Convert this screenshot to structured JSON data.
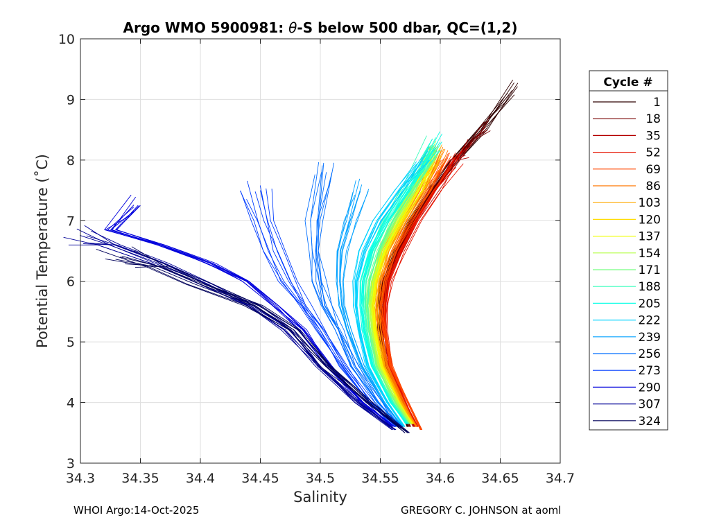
{
  "chart_data": {
    "type": "line",
    "title_pre": "Argo WMO 5900981: ",
    "title_theta": "θ",
    "title_post": "-S below 500 dbar,  QC=(1,2)",
    "xlabel": "Salinity",
    "ylabel": "Potential Temperature (˚C)",
    "xlim": [
      34.3,
      34.7
    ],
    "ylim": [
      3,
      10
    ],
    "xticks": [
      "34.3",
      "34.35",
      "34.4",
      "34.45",
      "34.5",
      "34.55",
      "34.6",
      "34.65",
      "34.7"
    ],
    "yticks": [
      "3",
      "4",
      "5",
      "6",
      "7",
      "8",
      "9",
      "10"
    ],
    "grid": true,
    "legend_title": "Cycle #",
    "legend_position": "outside-right",
    "legend_entries": [
      "1",
      "18",
      "35",
      "52",
      "69",
      "86",
      "103",
      "120",
      "137",
      "154",
      "171",
      "188",
      "205",
      "222",
      "239",
      "256",
      "273",
      "290",
      "307",
      "324"
    ],
    "legend_colors": [
      "#2e0000",
      "#780000",
      "#b40000",
      "#e61400",
      "#ff4600",
      "#ff7800",
      "#ffaa00",
      "#ffdc00",
      "#f0ff0a",
      "#b4ff46",
      "#78ff82",
      "#3cffbe",
      "#0affe6",
      "#00d2ff",
      "#00a0ff",
      "#006eff",
      "#003cff",
      "#0000dc",
      "#000096",
      "#00005a"
    ],
    "series": [
      {
        "name": "1",
        "color": "#2e0000",
        "x": [
          34.573,
          34.565,
          34.553,
          34.549,
          34.549,
          34.552,
          34.562,
          34.575,
          34.592,
          34.612,
          34.634,
          34.66
        ],
        "y": [
          3.6,
          4.0,
          4.6,
          5.2,
          5.6,
          6.0,
          6.5,
          7.0,
          7.5,
          8.0,
          8.5,
          9.15
        ]
      },
      {
        "name": "18",
        "color": "#780000",
        "x": [
          34.575,
          34.567,
          34.555,
          34.551,
          34.551,
          34.554,
          34.564,
          34.577,
          34.594,
          34.612,
          34.628,
          34.638
        ],
        "y": [
          3.6,
          4.0,
          4.6,
          5.2,
          5.6,
          6.0,
          6.5,
          7.0,
          7.5,
          8.0,
          8.35,
          8.55
        ]
      },
      {
        "name": "35",
        "color": "#b40000",
        "x": [
          34.578,
          34.569,
          34.557,
          34.553,
          34.553,
          34.556,
          34.566,
          34.579,
          34.595,
          34.612,
          34.622
        ],
        "y": [
          3.6,
          4.0,
          4.6,
          5.2,
          5.6,
          6.0,
          6.5,
          7.0,
          7.5,
          8.0,
          8.2
        ]
      },
      {
        "name": "52",
        "color": "#e61400",
        "x": [
          34.581,
          34.571,
          34.558,
          34.554,
          34.554,
          34.557,
          34.567,
          34.58,
          34.596,
          34.613
        ],
        "y": [
          3.6,
          4.0,
          4.6,
          5.2,
          5.6,
          6.0,
          6.5,
          7.0,
          7.5,
          8.05
        ]
      },
      {
        "name": "69",
        "color": "#ff4600",
        "x": [
          34.584,
          34.573,
          34.559,
          34.553,
          34.551,
          34.553,
          34.562,
          34.575,
          34.59,
          34.605
        ],
        "y": [
          3.55,
          4.0,
          4.6,
          5.2,
          5.6,
          6.0,
          6.5,
          7.0,
          7.5,
          8.0
        ]
      },
      {
        "name": "86",
        "color": "#ff7800",
        "x": [
          34.58,
          34.569,
          34.555,
          34.549,
          34.547,
          34.549,
          34.557,
          34.57,
          34.585,
          34.6
        ],
        "y": [
          3.6,
          4.0,
          4.6,
          5.2,
          5.6,
          6.0,
          6.5,
          7.0,
          7.5,
          8.05
        ]
      },
      {
        "name": "103",
        "color": "#ffaa00",
        "x": [
          34.578,
          34.567,
          34.553,
          34.547,
          34.545,
          34.547,
          34.555,
          34.568,
          34.583,
          34.598
        ],
        "y": [
          3.65,
          4.0,
          4.6,
          5.2,
          5.6,
          6.0,
          6.5,
          7.0,
          7.5,
          8.1
        ]
      },
      {
        "name": "120",
        "color": "#ffdc00",
        "x": [
          34.577,
          34.566,
          34.552,
          34.546,
          34.544,
          34.546,
          34.554,
          34.567,
          34.582,
          34.597
        ],
        "y": [
          3.65,
          4.0,
          4.6,
          5.2,
          5.6,
          6.0,
          6.5,
          7.0,
          7.5,
          8.1
        ]
      },
      {
        "name": "137",
        "color": "#f0ff0a",
        "x": [
          34.576,
          34.565,
          34.551,
          34.545,
          34.543,
          34.545,
          34.553,
          34.565,
          34.58,
          34.595
        ],
        "y": [
          3.65,
          4.0,
          4.6,
          5.2,
          5.6,
          6.0,
          6.5,
          7.0,
          7.5,
          8.1
        ]
      },
      {
        "name": "154",
        "color": "#b4ff46",
        "x": [
          34.575,
          34.564,
          34.549,
          34.543,
          34.541,
          34.543,
          34.551,
          34.563,
          34.578,
          34.594
        ],
        "y": [
          3.65,
          4.0,
          4.6,
          5.2,
          5.6,
          6.0,
          6.5,
          7.0,
          7.5,
          8.15
        ]
      },
      {
        "name": "171",
        "color": "#78ff82",
        "x": [
          34.574,
          34.562,
          34.547,
          34.541,
          34.539,
          34.541,
          34.549,
          34.561,
          34.576,
          34.595
        ],
        "y": [
          3.65,
          4.0,
          4.6,
          5.2,
          5.6,
          6.0,
          6.5,
          7.0,
          7.5,
          8.2
        ]
      },
      {
        "name": "188",
        "color": "#3cffbe",
        "x": [
          34.573,
          34.561,
          34.545,
          34.539,
          34.537,
          34.538,
          34.545,
          34.557,
          34.573,
          34.595
        ],
        "y": [
          3.65,
          4.0,
          4.6,
          5.2,
          5.6,
          6.0,
          6.5,
          7.0,
          7.5,
          8.25
        ]
      },
      {
        "name": "205",
        "color": "#0affe6",
        "x": [
          34.572,
          34.559,
          34.543,
          34.536,
          34.534,
          34.535,
          34.542,
          34.555,
          34.572,
          34.598
        ],
        "y": [
          3.65,
          4.0,
          4.6,
          5.2,
          5.6,
          6.0,
          6.5,
          7.0,
          7.5,
          8.3
        ]
      },
      {
        "name": "222",
        "color": "#00d2ff",
        "x": [
          34.57,
          34.556,
          34.539,
          34.532,
          34.529,
          34.529,
          34.535,
          34.547,
          34.565,
          34.585
        ],
        "y": [
          3.6,
          4.0,
          4.6,
          5.2,
          5.6,
          6.0,
          6.5,
          7.0,
          7.5,
          8.05
        ]
      },
      {
        "name": "239",
        "color": "#00a0ff",
        "x": [
          34.568,
          34.553,
          34.535,
          34.524,
          34.518,
          34.516,
          34.518,
          34.525,
          34.534
        ],
        "y": [
          3.6,
          4.0,
          4.6,
          5.2,
          5.6,
          6.0,
          6.5,
          7.0,
          7.55
        ]
      },
      {
        "name": "256",
        "color": "#006eff",
        "x": [
          34.566,
          34.549,
          34.529,
          34.515,
          34.505,
          34.499,
          34.496,
          34.498,
          34.505
        ],
        "y": [
          3.6,
          4.0,
          4.6,
          5.2,
          5.6,
          6.0,
          6.5,
          7.0,
          7.8
        ]
      },
      {
        "name": "273",
        "color": "#003cff",
        "x": [
          34.563,
          34.543,
          34.52,
          34.502,
          34.488,
          34.475,
          34.464,
          34.456,
          34.45
        ],
        "y": [
          3.6,
          4.0,
          4.6,
          5.2,
          5.6,
          6.0,
          6.5,
          7.0,
          7.5
        ]
      },
      {
        "name": "290",
        "color": "#0000dc",
        "x": [
          34.56,
          34.536,
          34.508,
          34.486,
          34.465,
          34.44,
          34.41,
          34.37,
          34.33,
          34.35
        ],
        "y": [
          3.6,
          4.0,
          4.6,
          5.2,
          5.6,
          6.0,
          6.3,
          6.6,
          6.85,
          7.25
        ]
      },
      {
        "name": "307",
        "color": "#000096",
        "x": [
          34.562,
          34.532,
          34.5,
          34.474,
          34.445,
          34.41,
          34.37,
          34.33,
          34.305
        ],
        "y": [
          3.55,
          4.0,
          4.6,
          5.2,
          5.6,
          5.95,
          6.3,
          6.6,
          6.75
        ]
      },
      {
        "name": "324",
        "color": "#00005a",
        "x": [
          34.573,
          34.54,
          34.505,
          34.478,
          34.445,
          34.4,
          34.365,
          34.333
        ],
        "y": [
          3.5,
          4.0,
          4.6,
          5.2,
          5.6,
          5.95,
          6.25,
          6.4
        ]
      }
    ]
  },
  "footer": {
    "left": "WHOI Argo:14-Oct-2025",
    "right": "GREGORY C. JOHNSON at aoml"
  }
}
